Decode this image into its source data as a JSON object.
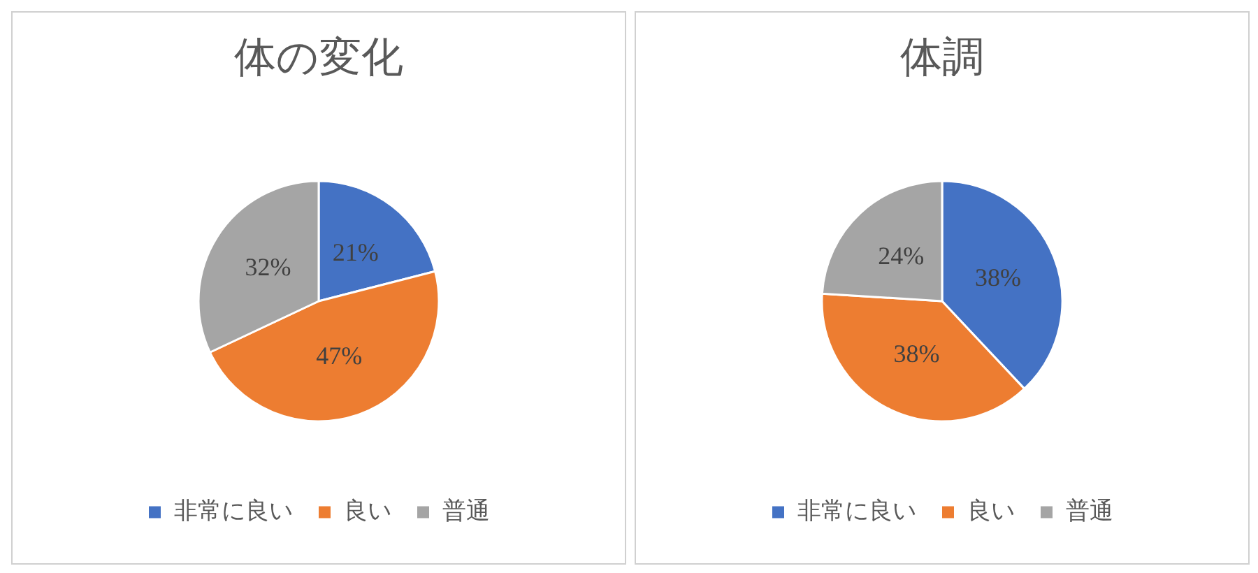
{
  "chart_data": [
    {
      "type": "pie",
      "title": "体の変化",
      "categories": [
        "非常に良い",
        "良い",
        "普通"
      ],
      "values": [
        21,
        47,
        32
      ],
      "colors": [
        "#4472c4",
        "#ed7d31",
        "#a5a5a5"
      ],
      "value_labels": [
        "21%",
        "47%",
        "32%"
      ],
      "legend": "bottom"
    },
    {
      "type": "pie",
      "title": "体調",
      "categories": [
        "非常に良い",
        "良い",
        "普通"
      ],
      "values": [
        38,
        38,
        24
      ],
      "colors": [
        "#4472c4",
        "#ed7d31",
        "#a5a5a5"
      ],
      "value_labels": [
        "38%",
        "38%",
        "24%"
      ],
      "legend": "bottom"
    }
  ]
}
